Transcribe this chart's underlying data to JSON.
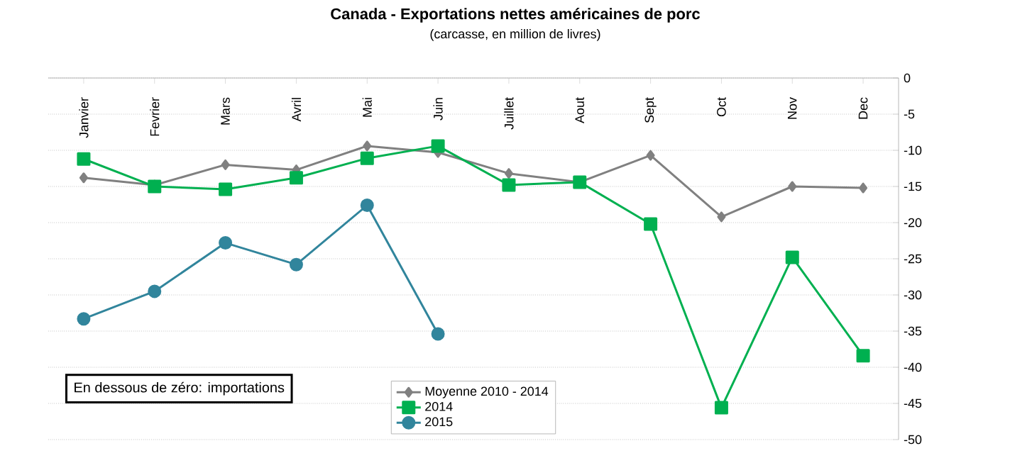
{
  "chart_data": {
    "type": "line",
    "title": "Canada - Exportations nettes américaines de porc",
    "subtitle": "(carcasse, en million de livres)",
    "categories": [
      "Janvier",
      "Fevrier",
      "Mars",
      "Avril",
      "Mai",
      "Juin",
      "Juillet",
      "Aout",
      "Sept",
      "Oct",
      "Nov",
      "Dec"
    ],
    "series": [
      {
        "name": "Moyenne 2010 - 2014",
        "color": "#808080",
        "marker": "diamond",
        "values": [
          -13.8,
          -14.8,
          -12.0,
          -12.7,
          -9.4,
          -10.3,
          -13.2,
          -14.4,
          -10.7,
          -19.2,
          -15.0,
          -15.2
        ]
      },
      {
        "name": "2014",
        "color": "#00b050",
        "marker": "square",
        "values": [
          -11.2,
          -15.0,
          -15.4,
          -13.8,
          -11.1,
          -9.4,
          -14.8,
          -14.4,
          -20.2,
          -45.6,
          -24.8,
          -38.4
        ]
      },
      {
        "name": "2015",
        "color": "#31859c",
        "marker": "circle",
        "values": [
          -33.3,
          -29.5,
          -22.8,
          -25.8,
          -17.6,
          -35.4,
          null,
          null,
          null,
          null,
          null,
          null
        ]
      }
    ],
    "ylim": [
      -50,
      0
    ],
    "yticks": [
      -50,
      -45,
      -40,
      -35,
      -30,
      -25,
      -20,
      -15,
      -10,
      -5,
      0
    ],
    "grid": "y",
    "legend": "bottom",
    "annotations": [
      "En dessous de zéro: importations"
    ]
  }
}
